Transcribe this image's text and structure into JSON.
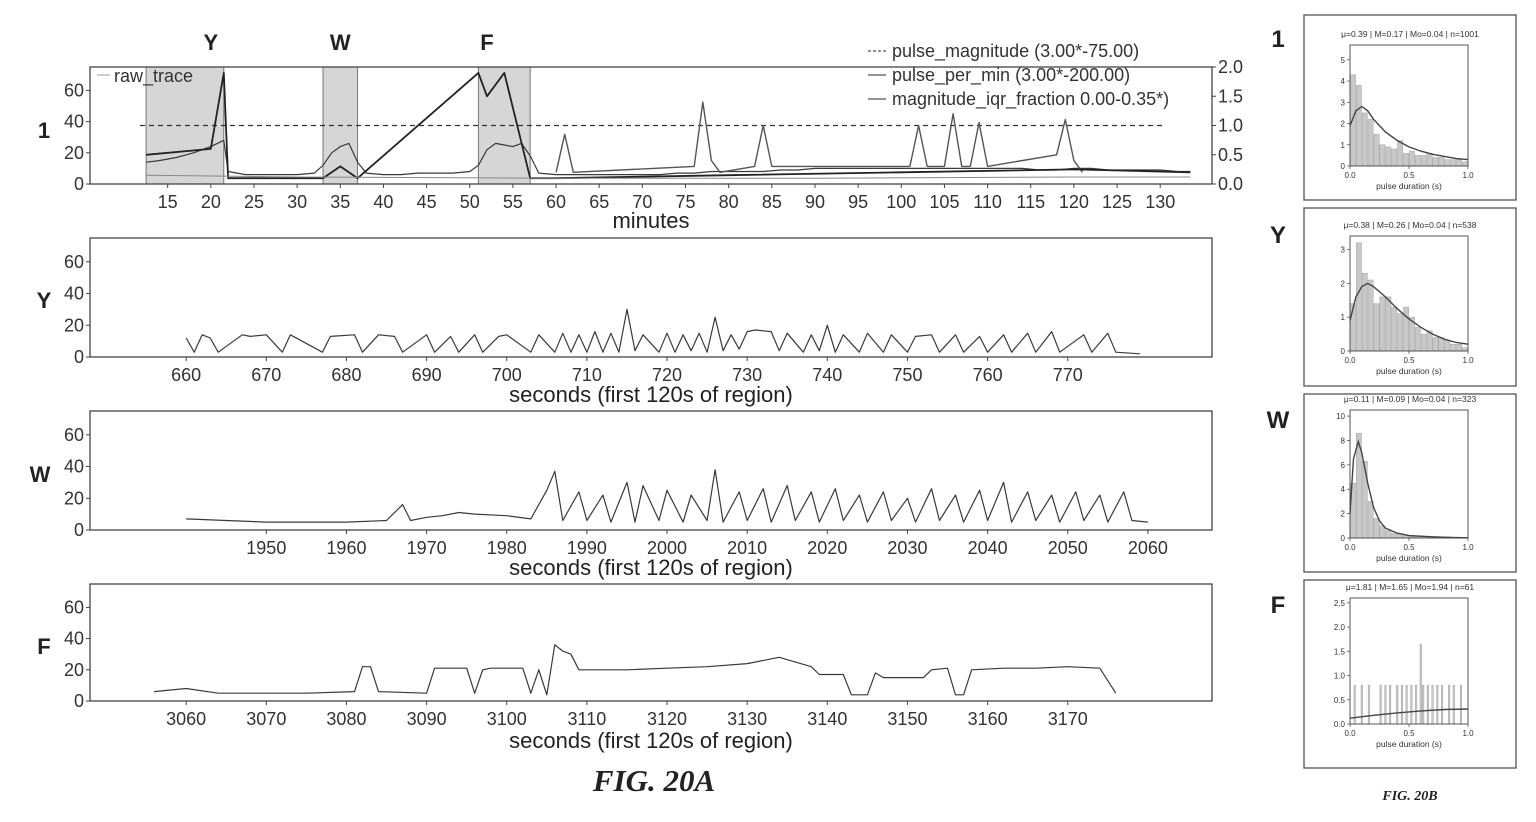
{
  "figure_20a_caption": "FIG. 20A",
  "figure_20b_caption": "FIG. 20B",
  "region_markers": [
    {
      "label": "Y",
      "minute": 20,
      "band": [
        12.5,
        21.5
      ]
    },
    {
      "label": "W",
      "minute": 35,
      "band": [
        33,
        37
      ]
    },
    {
      "label": "F",
      "minute": 52,
      "band": [
        51,
        57
      ]
    }
  ],
  "chart_data": [
    {
      "type": "line",
      "panel_label": "1",
      "legend": [
        "raw_trace",
        "pulse_magnitude (3.00*-75.00)",
        "pulse_per_min (3.00*-200.00)",
        "magnitude_iqr_fraction 0.00-0.35*)"
      ],
      "xlabel": "minutes",
      "xlim": [
        6,
        136
      ],
      "xticks": [
        15,
        20,
        25,
        30,
        35,
        40,
        45,
        50,
        55,
        60,
        65,
        70,
        75,
        80,
        85,
        90,
        95,
        100,
        105,
        110,
        115,
        120,
        125,
        130
      ],
      "ylim": [
        0,
        75
      ],
      "yticks": [
        0,
        20,
        40,
        60
      ],
      "ylim_right": [
        0,
        2.0
      ],
      "yticks_right": [
        "0.0",
        "0.5",
        "1.0",
        "1.5",
        "2.0"
      ],
      "threshold_right": 1.0,
      "series": [
        {
          "name": "raw_trace",
          "x": [
            12.5,
            14,
            16,
            18,
            20,
            21.5,
            22,
            24,
            26,
            28,
            30,
            32,
            33,
            34,
            35,
            36,
            37,
            38,
            40,
            42,
            44,
            46,
            48,
            50,
            51,
            52,
            53,
            54,
            55,
            56,
            57,
            58,
            60,
            62,
            64,
            66,
            68,
            70,
            72,
            74,
            76,
            78,
            80,
            82,
            84,
            86,
            88,
            90,
            92,
            94,
            96,
            98,
            100,
            102,
            104,
            106,
            108,
            110,
            112,
            114,
            116,
            118,
            120,
            122,
            124,
            126,
            128,
            130,
            132,
            133.5
          ],
          "y": [
            14,
            15,
            17,
            20,
            24,
            28,
            8,
            6,
            6,
            6,
            6,
            7,
            12,
            20,
            24,
            26,
            14,
            7,
            6,
            6,
            7,
            7,
            7,
            8,
            12,
            22,
            26,
            25,
            24,
            26,
            18,
            7,
            6,
            6,
            6,
            6,
            6,
            6,
            6,
            7,
            7,
            8,
            8,
            8,
            8,
            9,
            9,
            10,
            10,
            10,
            10,
            10,
            10,
            10,
            10,
            10,
            10,
            10,
            10,
            10,
            9,
            9,
            10,
            10,
            9,
            9,
            9,
            9,
            8,
            8
          ]
        },
        {
          "name": "pulse_magnitude (3.00*-75.00)",
          "x": [
            60,
            61,
            62,
            76,
            77,
            78,
            79,
            83,
            84,
            85,
            101,
            102,
            103,
            105,
            106,
            107,
            108,
            109,
            110,
            118,
            119,
            120,
            121
          ],
          "y": [
            0.2,
            0.85,
            0.2,
            0.3,
            1.4,
            0.4,
            0.2,
            0.3,
            1.0,
            0.3,
            0.3,
            1.0,
            0.3,
            0.3,
            1.2,
            0.3,
            0.3,
            1.05,
            0.3,
            0.5,
            1.1,
            0.4,
            0.2
          ]
        },
        {
          "name": "pulse_per_min (3.00*-200.00)",
          "x": [
            12.5,
            20,
            21.5,
            22,
            33,
            35,
            37,
            51,
            52,
            54,
            57,
            60,
            80,
            100,
            120,
            133.5
          ],
          "y": [
            0.5,
            0.6,
            1.9,
            0.1,
            0.1,
            0.3,
            0.1,
            1.9,
            1.5,
            1.9,
            0.1,
            0.1,
            0.15,
            0.2,
            0.25,
            0.2
          ]
        },
        {
          "name": "magnitude_iqr_fraction 0.00-0.35*)",
          "x": [
            12.5,
            30,
            60,
            90,
            120,
            133.5
          ],
          "y": [
            0.15,
            0.12,
            0.1,
            0.1,
            0.12,
            0.12
          ]
        }
      ]
    },
    {
      "type": "line",
      "panel_label": "Y",
      "xlabel": "seconds (first 120s of region)",
      "xlim": [
        648,
        788
      ],
      "xticks": [
        660,
        670,
        680,
        690,
        700,
        710,
        720,
        730,
        740,
        750,
        760,
        770
      ],
      "ylim": [
        0,
        75
      ],
      "yticks": [
        0,
        20,
        40,
        60
      ],
      "series": [
        {
          "name": "",
          "x": [
            660,
            661,
            662,
            663,
            664,
            667,
            668,
            670,
            672,
            673,
            677,
            678,
            681,
            682,
            684,
            686,
            687,
            690,
            691,
            693,
            694,
            696,
            697,
            699,
            700,
            703,
            704,
            706,
            707,
            708,
            709,
            710,
            711,
            712,
            713,
            714,
            715,
            716,
            717,
            719,
            720,
            721,
            722,
            723,
            724,
            725,
            726,
            727,
            728,
            729,
            730,
            731,
            733,
            734,
            735,
            737,
            738,
            739,
            740,
            741,
            742,
            744,
            745,
            747,
            748,
            750,
            751,
            753,
            754,
            756,
            757,
            759,
            760,
            762,
            763,
            765,
            766,
            768,
            769,
            772,
            773,
            775,
            776,
            779
          ],
          "y": [
            12,
            3,
            14,
            12,
            3,
            14,
            13,
            14,
            3,
            14,
            3,
            13,
            14,
            3,
            14,
            13,
            3,
            14,
            3,
            13,
            3,
            14,
            3,
            13,
            14,
            3,
            14,
            3,
            15,
            3,
            14,
            3,
            16,
            3,
            15,
            3,
            30,
            4,
            14,
            3,
            15,
            3,
            14,
            4,
            15,
            3,
            25,
            4,
            14,
            5,
            16,
            17,
            16,
            4,
            15,
            3,
            14,
            4,
            20,
            3,
            14,
            3,
            15,
            3,
            14,
            3,
            13,
            14,
            3,
            14,
            3,
            13,
            3,
            14,
            3,
            15,
            3,
            16,
            3,
            14,
            3,
            15,
            3,
            2
          ]
        }
      ]
    },
    {
      "type": "line",
      "panel_label": "W",
      "xlabel": "seconds (first 120s of region)",
      "xlim": [
        1928,
        2068
      ],
      "xticks": [
        1950,
        1960,
        1970,
        1980,
        1990,
        2000,
        2010,
        2020,
        2030,
        2040,
        2050,
        2060
      ],
      "ylim": [
        0,
        75
      ],
      "yticks": [
        0,
        20,
        40,
        60
      ],
      "series": [
        {
          "name": "",
          "x": [
            1940,
            1945,
            1950,
            1955,
            1960,
            1965,
            1967,
            1968,
            1970,
            1972,
            1974,
            1976,
            1980,
            1983,
            1985,
            1986,
            1987,
            1989,
            1990,
            1992,
            1993,
            1995,
            1996,
            1997,
            1999,
            2000,
            2002,
            2003,
            2005,
            2006,
            2007,
            2009,
            2010,
            2012,
            2013,
            2015,
            2016,
            2018,
            2019,
            2021,
            2022,
            2024,
            2025,
            2027,
            2028,
            2030,
            2031,
            2033,
            2034,
            2036,
            2037,
            2039,
            2040,
            2042,
            2043,
            2045,
            2046,
            2048,
            2049,
            2051,
            2052,
            2054,
            2055,
            2057,
            2058,
            2060
          ],
          "y": [
            7,
            6,
            5,
            5,
            5,
            6,
            16,
            6,
            8,
            9,
            11,
            10,
            9,
            7,
            25,
            37,
            6,
            24,
            6,
            22,
            5,
            30,
            5,
            28,
            6,
            25,
            5,
            22,
            6,
            38,
            5,
            24,
            6,
            26,
            5,
            28,
            6,
            24,
            5,
            26,
            6,
            22,
            5,
            24,
            6,
            20,
            5,
            26,
            6,
            22,
            5,
            25,
            6,
            30,
            5,
            24,
            6,
            22,
            5,
            24,
            6,
            22,
            5,
            24,
            6,
            5
          ]
        }
      ]
    },
    {
      "type": "line",
      "panel_label": "F",
      "xlabel": "seconds (first 120s of region)",
      "xlim": [
        3048,
        3188
      ],
      "xticks": [
        3060,
        3070,
        3080,
        3090,
        3100,
        3110,
        3120,
        3130,
        3140,
        3150,
        3160,
        3170
      ],
      "ylim": [
        0,
        75
      ],
      "yticks": [
        0,
        20,
        40,
        60
      ],
      "series": [
        {
          "name": "",
          "x": [
            3056,
            3060,
            3064,
            3070,
            3075,
            3081,
            3082,
            3083,
            3084,
            3090,
            3091,
            3095,
            3096,
            3097,
            3098,
            3102,
            3103,
            3104,
            3105,
            3106,
            3107,
            3108,
            3109,
            3110,
            3115,
            3120,
            3125,
            3130,
            3134,
            3138,
            3139,
            3142,
            3143,
            3145,
            3146,
            3147,
            3150,
            3152,
            3153,
            3155,
            3156,
            3157,
            3158,
            3162,
            3166,
            3170,
            3174,
            3176
          ],
          "y": [
            6,
            8,
            5,
            5,
            5,
            6,
            22,
            22,
            6,
            5,
            21,
            21,
            5,
            20,
            21,
            21,
            5,
            20,
            4,
            36,
            32,
            30,
            20,
            20,
            20,
            21,
            22,
            24,
            28,
            22,
            17,
            17,
            4,
            4,
            18,
            15,
            15,
            15,
            20,
            21,
            4,
            4,
            20,
            21,
            21,
            22,
            21,
            5
          ]
        }
      ]
    },
    {
      "type": "bar",
      "panel_label": "1",
      "title": "μ=0.39 | M=0.17 | Mo=0.04 | n=1001",
      "xlabel": "pulse duration (s)",
      "xlim": [
        0.0,
        1.0
      ],
      "ylim": [
        0,
        5.7
      ],
      "yticks": [
        "0",
        "1",
        "2",
        "3",
        "4",
        "5"
      ],
      "xticks": [
        "0.0",
        "0.5",
        "1.0"
      ],
      "categories": [
        0.025,
        0.075,
        0.125,
        0.175,
        0.225,
        0.275,
        0.325,
        0.375,
        0.425,
        0.475,
        0.525,
        0.575,
        0.625,
        0.675,
        0.725,
        0.775,
        0.825,
        0.875,
        0.925,
        0.975
      ],
      "values": [
        4.3,
        3.8,
        2.5,
        2.2,
        1.5,
        1.0,
        0.9,
        0.8,
        1.2,
        0.6,
        0.7,
        0.5,
        0.5,
        0.6,
        0.4,
        0.4,
        0.3,
        0.3,
        0.3,
        0.2
      ],
      "kde": {
        "x": [
          0,
          0.05,
          0.1,
          0.15,
          0.2,
          0.3,
          0.4,
          0.5,
          0.6,
          0.7,
          0.8,
          0.9,
          1.0
        ],
        "y": [
          1.9,
          2.6,
          2.8,
          2.6,
          2.2,
          1.6,
          1.2,
          0.9,
          0.7,
          0.55,
          0.45,
          0.35,
          0.3
        ]
      }
    },
    {
      "type": "bar",
      "panel_label": "Y",
      "title": "μ=0.38 | M=0.26 | Mo=0.04 | n=538",
      "xlabel": "pulse duration (s)",
      "xlim": [
        0.0,
        1.0
      ],
      "ylim": [
        0,
        3.4
      ],
      "yticks": [
        "0",
        "1",
        "2",
        "3"
      ],
      "xticks": [
        "0.0",
        "0.5",
        "1.0"
      ],
      "categories": [
        0.025,
        0.075,
        0.125,
        0.175,
        0.225,
        0.275,
        0.325,
        0.375,
        0.425,
        0.475,
        0.525,
        0.575,
        0.625,
        0.675,
        0.725,
        0.775,
        0.825,
        0.875,
        0.925,
        0.975
      ],
      "values": [
        1.4,
        3.2,
        2.3,
        2.1,
        1.4,
        1.6,
        1.6,
        1.3,
        1.1,
        1.3,
        1.0,
        0.7,
        0.5,
        0.6,
        0.4,
        0.4,
        0.3,
        0.2,
        0.2,
        0.1
      ],
      "kde": {
        "x": [
          0,
          0.05,
          0.1,
          0.15,
          0.2,
          0.3,
          0.4,
          0.5,
          0.6,
          0.7,
          0.8,
          0.9,
          1.0
        ],
        "y": [
          0.9,
          1.6,
          1.9,
          2.0,
          1.9,
          1.6,
          1.25,
          0.95,
          0.7,
          0.5,
          0.35,
          0.25,
          0.2
        ]
      }
    },
    {
      "type": "bar",
      "panel_label": "W",
      "title": "μ=0.11 | M=0.09 | Mo=0.04 | n=323",
      "xlabel": "pulse duration (s)",
      "xlim": [
        0.0,
        1.0
      ],
      "ylim": [
        0,
        10.5
      ],
      "yticks": [
        "0",
        "2",
        "4",
        "6",
        "8",
        "10"
      ],
      "xticks": [
        "0.0",
        "0.5",
        "1.0"
      ],
      "categories": [
        0.025,
        0.075,
        0.125,
        0.175,
        0.225,
        0.275,
        0.325,
        0.375,
        0.425,
        0.475,
        0.525,
        0.575,
        0.625,
        0.675,
        0.725,
        0.775,
        0.825,
        0.875,
        0.925,
        0.975
      ],
      "values": [
        4.5,
        8.6,
        6.3,
        3.0,
        1.6,
        1.0,
        0.6,
        0.4,
        0.3,
        0.2,
        0.1,
        0.1,
        0.1,
        0.1,
        0.1,
        0.1,
        0.1,
        0.0,
        0.0,
        0.0
      ],
      "kde": {
        "x": [
          0,
          0.03,
          0.07,
          0.1,
          0.15,
          0.2,
          0.25,
          0.3,
          0.4,
          0.5,
          0.7,
          0.85,
          1.0
        ],
        "y": [
          2.0,
          6.5,
          7.9,
          7.0,
          4.5,
          2.5,
          1.4,
          0.8,
          0.4,
          0.2,
          0.1,
          0.05,
          0.02
        ]
      }
    },
    {
      "type": "bar",
      "panel_label": "F",
      "title": "μ=1.81 | M=1.65 | Mo=1.94 | n=61",
      "xlabel": "pulse duration (s)",
      "xlim": [
        0.0,
        1.0
      ],
      "ylim": [
        0,
        2.6
      ],
      "yticks": [
        "0.0",
        "0.5",
        "1.0",
        "1.5",
        "2.0",
        "2.5"
      ],
      "xticks": [
        "0.0",
        "0.5",
        "1.0"
      ],
      "categories": [
        0.04,
        0.1,
        0.16,
        0.26,
        0.3,
        0.34,
        0.4,
        0.44,
        0.48,
        0.52,
        0.56,
        0.6,
        0.62,
        0.66,
        0.7,
        0.74,
        0.78,
        0.84,
        0.88,
        0.94
      ],
      "values": [
        0.8,
        0.8,
        0.8,
        0.8,
        0.8,
        0.8,
        0.8,
        0.8,
        0.8,
        0.8,
        0.8,
        1.65,
        0.8,
        0.8,
        0.8,
        0.8,
        0.8,
        0.8,
        0.8,
        0.8
      ],
      "kde": {
        "x": [
          0,
          0.2,
          0.4,
          0.6,
          0.8,
          1.0
        ],
        "y": [
          0.12,
          0.18,
          0.23,
          0.27,
          0.3,
          0.31
        ]
      }
    }
  ]
}
